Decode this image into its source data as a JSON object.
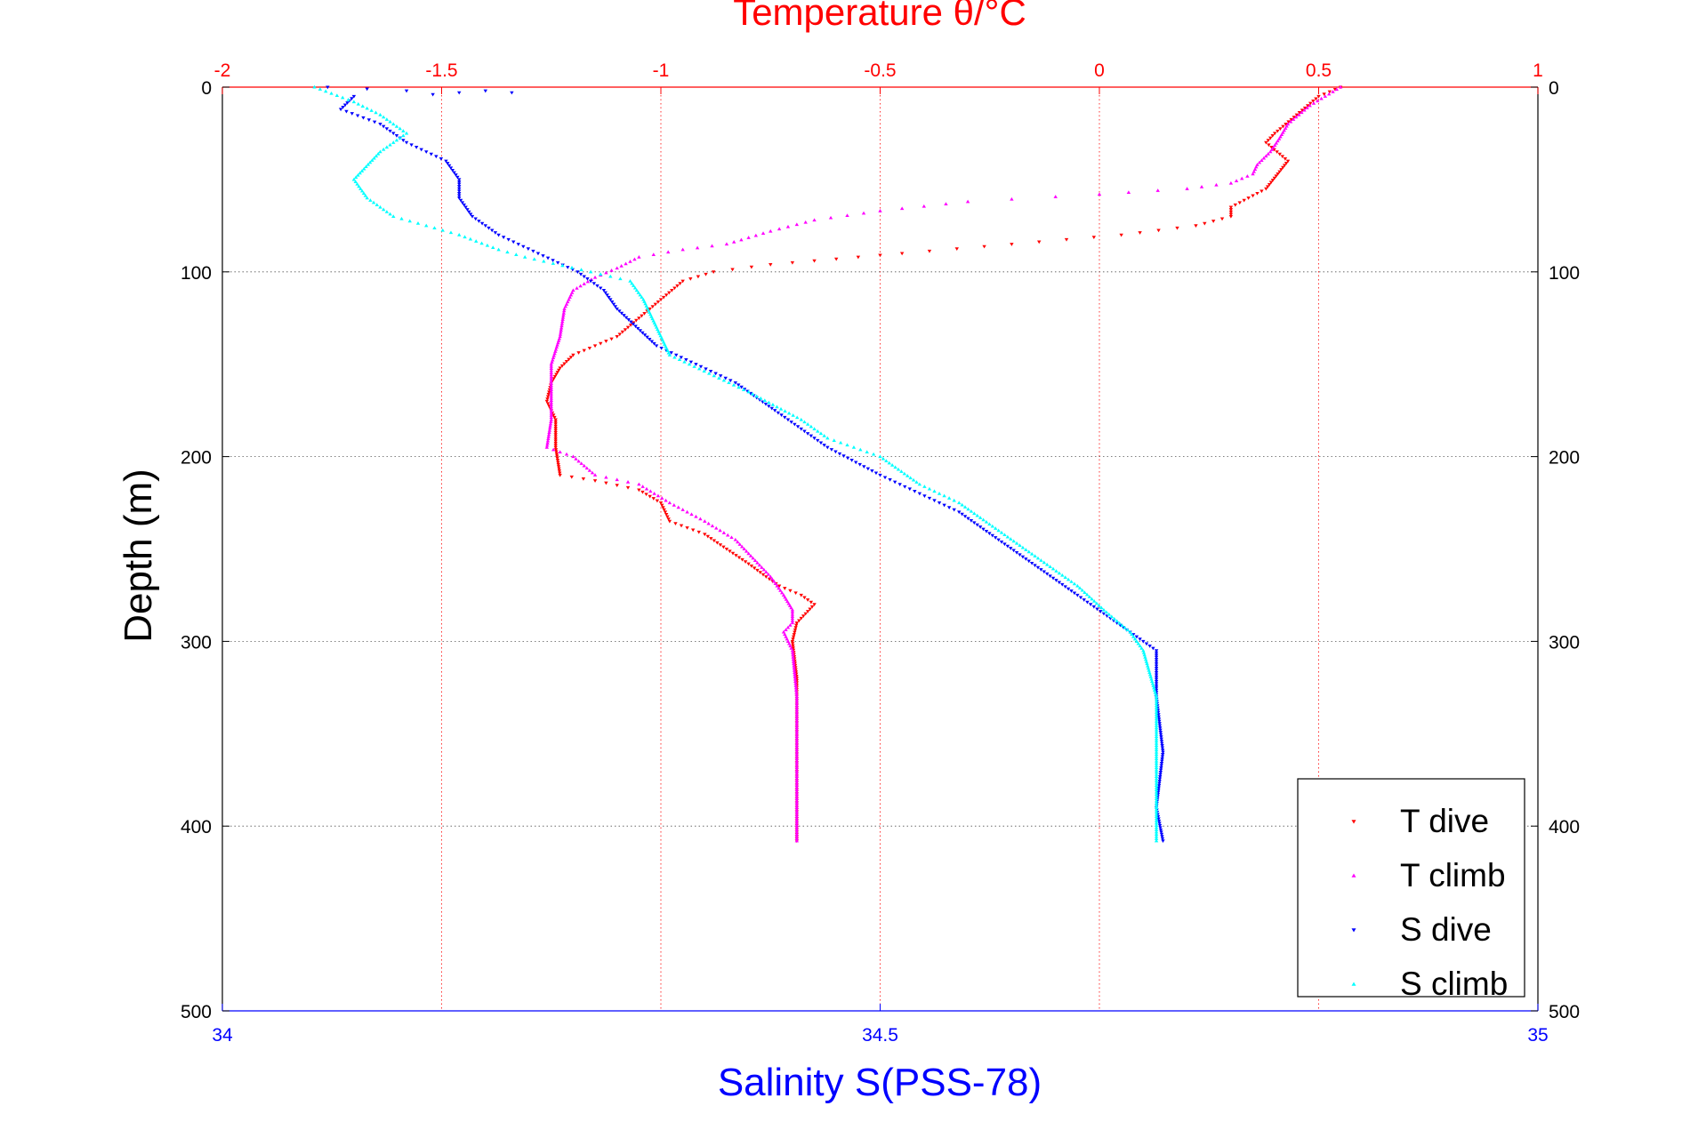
{
  "chart_data": {
    "type": "scatter",
    "title": "Temperature θ/°C",
    "xlabel": "Salinity S(PSS-78)",
    "ylabel": "Depth (m)",
    "axes": {
      "temperature_top": {
        "range": [
          -2,
          1
        ],
        "ticks": [
          -2,
          -1.5,
          -1,
          -0.5,
          0,
          0.5,
          1
        ],
        "tick_labels": [
          "-2",
          "-1.5",
          "-1",
          "-0.5",
          "0",
          "0.5",
          "1"
        ]
      },
      "salinity_bottom": {
        "range": [
          34,
          35
        ],
        "ticks": [
          34,
          34.5,
          35
        ],
        "tick_labels": [
          "34",
          "34.5",
          "35"
        ]
      },
      "depth": {
        "range": [
          0,
          500
        ],
        "inverted": true,
        "ticks": [
          0,
          100,
          200,
          300,
          400,
          500
        ],
        "tick_labels": [
          "0",
          "100",
          "200",
          "300",
          "400",
          "500"
        ]
      }
    },
    "grid": true,
    "legend_position": "bottom-right",
    "series": [
      {
        "name": "T dive",
        "variable": "temperature",
        "color": "#ff0000",
        "marker": "triangle-down",
        "points": [
          [
            0.55,
            0
          ],
          [
            0.5,
            5
          ],
          [
            0.45,
            15
          ],
          [
            0.4,
            25
          ],
          [
            0.38,
            30
          ],
          [
            0.43,
            40
          ],
          [
            0.38,
            55
          ],
          [
            0.3,
            65
          ],
          [
            0.3,
            70
          ],
          [
            0.22,
            75
          ],
          [
            0.05,
            80
          ],
          [
            -0.2,
            85
          ],
          [
            -0.45,
            90
          ],
          [
            -0.6,
            93
          ],
          [
            -0.75,
            96
          ],
          [
            -0.88,
            100
          ],
          [
            -0.95,
            105
          ],
          [
            -1.0,
            115
          ],
          [
            -1.05,
            125
          ],
          [
            -1.1,
            135
          ],
          [
            -1.15,
            140
          ],
          [
            -1.2,
            145
          ],
          [
            -1.23,
            152
          ],
          [
            -1.25,
            160
          ],
          [
            -1.26,
            170
          ],
          [
            -1.24,
            180
          ],
          [
            -1.24,
            195
          ],
          [
            -1.23,
            210
          ],
          [
            -1.15,
            213
          ],
          [
            -1.05,
            218
          ],
          [
            -1.0,
            225
          ],
          [
            -0.98,
            235
          ],
          [
            -0.9,
            242
          ],
          [
            -0.85,
            250
          ],
          [
            -0.8,
            258
          ],
          [
            -0.76,
            265
          ],
          [
            -0.73,
            270
          ],
          [
            -0.68,
            275
          ],
          [
            -0.65,
            280
          ],
          [
            -0.69,
            290
          ],
          [
            -0.7,
            300
          ],
          [
            -0.69,
            320
          ],
          [
            -0.69,
            350
          ],
          [
            -0.69,
            380
          ],
          [
            -0.69,
            408
          ]
        ]
      },
      {
        "name": "T climb",
        "variable": "temperature",
        "color": "#ff00ff",
        "marker": "triangle-up",
        "points": [
          [
            0.55,
            0
          ],
          [
            0.48,
            10
          ],
          [
            0.43,
            20
          ],
          [
            0.41,
            28
          ],
          [
            0.39,
            35
          ],
          [
            0.36,
            42
          ],
          [
            0.35,
            47
          ],
          [
            0.3,
            52
          ],
          [
            0.2,
            55
          ],
          [
            0.0,
            58
          ],
          [
            -0.3,
            62
          ],
          [
            -0.5,
            67
          ],
          [
            -0.65,
            72
          ],
          [
            -0.75,
            78
          ],
          [
            -0.85,
            85
          ],
          [
            -0.95,
            88
          ],
          [
            -1.05,
            92
          ],
          [
            -1.1,
            98
          ],
          [
            -1.15,
            103
          ],
          [
            -1.2,
            110
          ],
          [
            -1.22,
            120
          ],
          [
            -1.23,
            135
          ],
          [
            -1.25,
            150
          ],
          [
            -1.25,
            165
          ],
          [
            -1.25,
            180
          ],
          [
            -1.26,
            195
          ],
          [
            -1.2,
            200
          ],
          [
            -1.15,
            210
          ],
          [
            -1.05,
            215
          ],
          [
            -0.98,
            225
          ],
          [
            -0.9,
            235
          ],
          [
            -0.83,
            245
          ],
          [
            -0.79,
            255
          ],
          [
            -0.75,
            265
          ],
          [
            -0.72,
            275
          ],
          [
            -0.7,
            283
          ],
          [
            -0.7,
            290
          ],
          [
            -0.72,
            295
          ],
          [
            -0.7,
            305
          ],
          [
            -0.69,
            330
          ],
          [
            -0.69,
            360
          ],
          [
            -0.69,
            390
          ],
          [
            -0.69,
            408
          ]
        ]
      },
      {
        "name": "S dive",
        "variable": "salinity",
        "color": "#0000ff",
        "marker": "triangle-down",
        "points": [
          [
            34.08,
            0
          ],
          [
            34.14,
            2
          ],
          [
            34.18,
            3
          ],
          [
            34.2,
            2
          ],
          [
            34.22,
            3
          ],
          [
            34.1,
            5
          ],
          [
            34.09,
            12
          ],
          [
            34.12,
            20
          ],
          [
            34.14,
            30
          ],
          [
            34.17,
            40
          ],
          [
            34.18,
            50
          ],
          [
            34.18,
            60
          ],
          [
            34.19,
            70
          ],
          [
            34.21,
            80
          ],
          [
            34.24,
            90
          ],
          [
            34.27,
            100
          ],
          [
            34.29,
            110
          ],
          [
            34.3,
            120
          ],
          [
            34.33,
            140
          ],
          [
            34.36,
            150
          ],
          [
            34.39,
            160
          ],
          [
            34.42,
            175
          ],
          [
            34.44,
            185
          ],
          [
            34.46,
            195
          ],
          [
            34.5,
            210
          ],
          [
            34.53,
            220
          ],
          [
            34.56,
            230
          ],
          [
            34.59,
            245
          ],
          [
            34.62,
            260
          ],
          [
            34.65,
            275
          ],
          [
            34.67,
            285
          ],
          [
            34.69,
            295
          ],
          [
            34.71,
            305
          ],
          [
            34.71,
            330
          ],
          [
            34.715,
            360
          ],
          [
            34.71,
            390
          ],
          [
            34.715,
            408
          ]
        ]
      },
      {
        "name": "S climb",
        "variable": "salinity",
        "color": "#00ffff",
        "marker": "triangle-up",
        "points": [
          [
            34.07,
            0
          ],
          [
            34.1,
            8
          ],
          [
            34.12,
            15
          ],
          [
            34.14,
            25
          ],
          [
            34.12,
            35
          ],
          [
            34.1,
            50
          ],
          [
            34.11,
            60
          ],
          [
            34.13,
            70
          ],
          [
            34.18,
            80
          ],
          [
            34.21,
            88
          ],
          [
            34.23,
            92
          ],
          [
            34.28,
            100
          ],
          [
            34.31,
            105
          ],
          [
            34.32,
            115
          ],
          [
            34.33,
            130
          ],
          [
            34.34,
            145
          ],
          [
            34.37,
            155
          ],
          [
            34.4,
            165
          ],
          [
            34.44,
            180
          ],
          [
            34.46,
            190
          ],
          [
            34.5,
            200
          ],
          [
            34.53,
            215
          ],
          [
            34.56,
            225
          ],
          [
            34.59,
            240
          ],
          [
            34.62,
            255
          ],
          [
            34.65,
            270
          ],
          [
            34.67,
            283
          ],
          [
            34.69,
            295
          ],
          [
            34.7,
            305
          ],
          [
            34.71,
            330
          ],
          [
            34.71,
            360
          ],
          [
            34.71,
            390
          ],
          [
            34.71,
            408
          ]
        ]
      }
    ],
    "colors": {
      "temperature_axis": "#ff0000",
      "salinity_axis": "#0000ff",
      "depth_axis": "#000000",
      "grid": "#888888"
    }
  }
}
